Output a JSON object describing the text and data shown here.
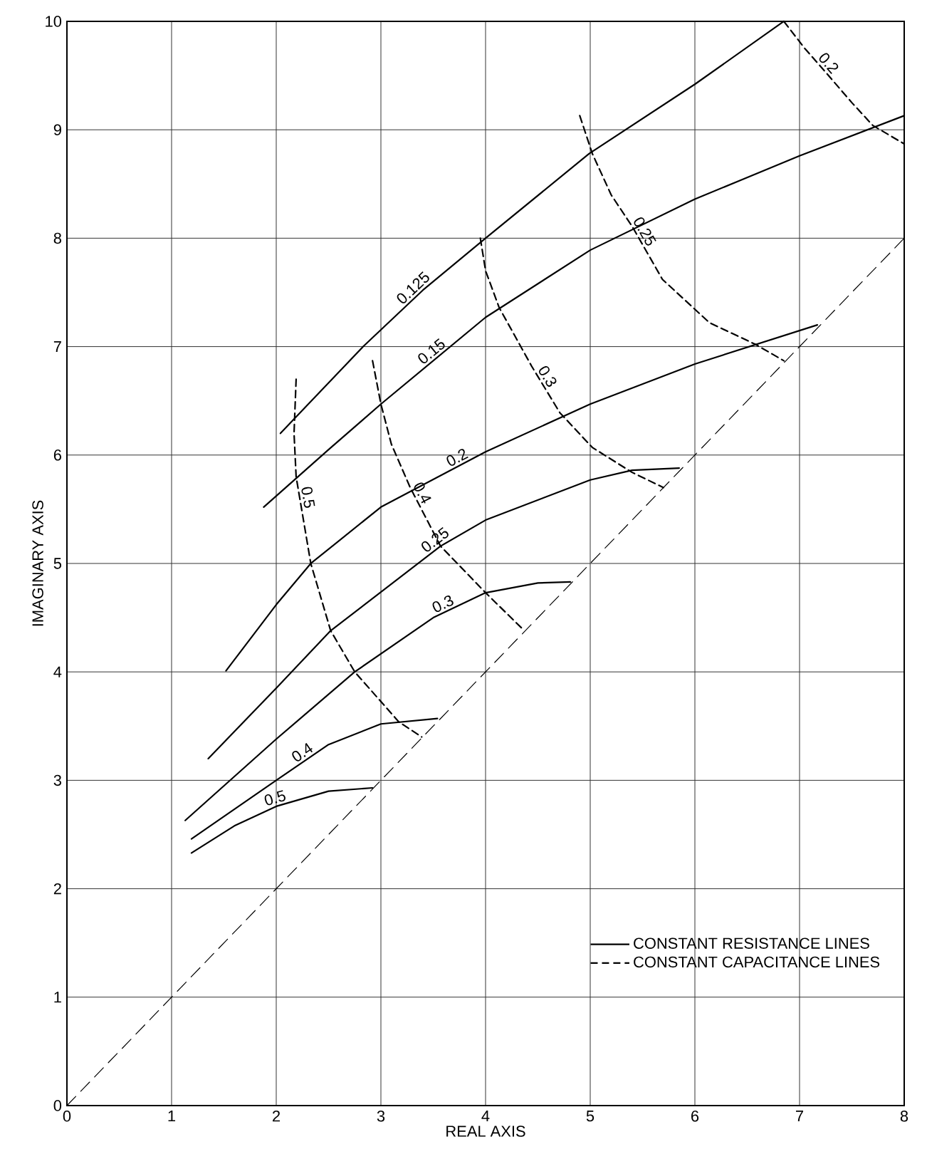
{
  "chart_data": {
    "type": "line",
    "xlabel": "REAL AXIS",
    "ylabel": "IMAGINARY AXIS",
    "xlim": [
      0,
      8
    ],
    "ylim": [
      0,
      10
    ],
    "xticks": [
      0,
      1,
      2,
      3,
      4,
      5,
      6,
      7,
      8
    ],
    "yticks": [
      0,
      1,
      2,
      3,
      4,
      5,
      6,
      7,
      8,
      9,
      10
    ],
    "grid": true,
    "marker": "none",
    "annotations": [
      "CONSTANT RESISTANCE LINES",
      "CONSTANT CAPACITANCE LINES"
    ],
    "series": [
      {
        "name": "0.125",
        "color": "#000000",
        "line_style": "solid",
        "x": [
          2.04,
          2.83,
          3.4,
          4.0,
          4.99,
          6.0,
          6.85
        ],
        "values": [
          6.2,
          7.0,
          7.52,
          8.0,
          8.78,
          9.42,
          10.0
        ]
      },
      {
        "name": "0.15",
        "color": "#000000",
        "line_style": "solid",
        "x": [
          1.88,
          2.5,
          3.0,
          4.0,
          5.0,
          6.0,
          7.0,
          8.0
        ],
        "values": [
          5.52,
          6.05,
          6.47,
          7.27,
          7.89,
          8.36,
          8.76,
          9.13
        ]
      },
      {
        "name": "0.2",
        "color": "#000000",
        "line_style": "solid",
        "x": [
          1.52,
          2.0,
          2.33,
          3.0,
          4.0,
          5.0,
          6.0,
          7.17
        ],
        "values": [
          4.01,
          4.62,
          5.0,
          5.52,
          6.03,
          6.47,
          6.84,
          7.2
        ]
      },
      {
        "name": "0.25",
        "color": "#000000",
        "line_style": "solid",
        "x": [
          1.35,
          2.0,
          2.52,
          3.57,
          4.0,
          5.0,
          5.4,
          5.85
        ],
        "values": [
          3.2,
          3.85,
          4.38,
          5.16,
          5.4,
          5.77,
          5.86,
          5.88
        ]
      },
      {
        "name": "0.3",
        "color": "#000000",
        "line_style": "solid",
        "x": [
          1.13,
          2.0,
          2.75,
          3.5,
          4.0,
          4.5,
          4.81
        ],
        "values": [
          2.63,
          3.38,
          4.0,
          4.5,
          4.73,
          4.82,
          4.83
        ]
      },
      {
        "name": "0.4",
        "color": "#000000",
        "line_style": "solid",
        "x": [
          1.19,
          2.0,
          2.5,
          3.0,
          3.54
        ],
        "values": [
          2.46,
          3.0,
          3.33,
          3.52,
          3.57
        ]
      },
      {
        "name": "0.5",
        "color": "#000000",
        "line_style": "solid",
        "x": [
          1.19,
          1.6,
          2.0,
          2.5,
          2.92
        ],
        "values": [
          2.33,
          2.58,
          2.76,
          2.9,
          2.93
        ]
      },
      {
        "name": "0.5",
        "color": "#000000",
        "line_style": "dashed",
        "x": [
          2.19,
          2.17,
          2.19,
          2.33,
          2.52,
          2.75,
          3.17,
          3.39
        ],
        "values": [
          6.7,
          6.2,
          5.8,
          5.0,
          4.38,
          4.0,
          3.54,
          3.4
        ]
      },
      {
        "name": "0.4",
        "color": "#000000",
        "line_style": "dashed",
        "x": [
          2.92,
          3.0,
          3.1,
          3.28,
          3.57,
          4.0,
          4.36
        ],
        "values": [
          6.87,
          6.47,
          6.1,
          5.7,
          5.16,
          4.73,
          4.39
        ]
      },
      {
        "name": "0.3",
        "color": "#000000",
        "line_style": "dashed",
        "x": [
          3.95,
          4.0,
          4.13,
          4.44,
          4.71,
          5.02,
          5.4,
          5.7
        ],
        "values": [
          8.0,
          7.7,
          7.36,
          6.82,
          6.39,
          6.07,
          5.84,
          5.7
        ]
      },
      {
        "name": "0.25",
        "color": "#000000",
        "line_style": "dashed",
        "x": [
          4.9,
          5.02,
          5.2,
          5.4,
          5.69,
          6.14,
          6.58,
          6.85
        ],
        "values": [
          9.13,
          8.78,
          8.4,
          8.11,
          7.62,
          7.22,
          7.02,
          6.87
        ]
      },
      {
        "name": "0.2",
        "color": "#000000",
        "line_style": "dashed",
        "x": [
          6.85,
          7.05,
          7.25,
          7.5,
          7.7,
          8.0
        ],
        "values": [
          10.0,
          9.75,
          9.53,
          9.25,
          9.04,
          8.87
        ]
      },
      {
        "color": "#000000",
        "line_style": "dashed",
        "x": [
          0,
          8
        ],
        "values": [
          0,
          8
        ]
      }
    ]
  }
}
